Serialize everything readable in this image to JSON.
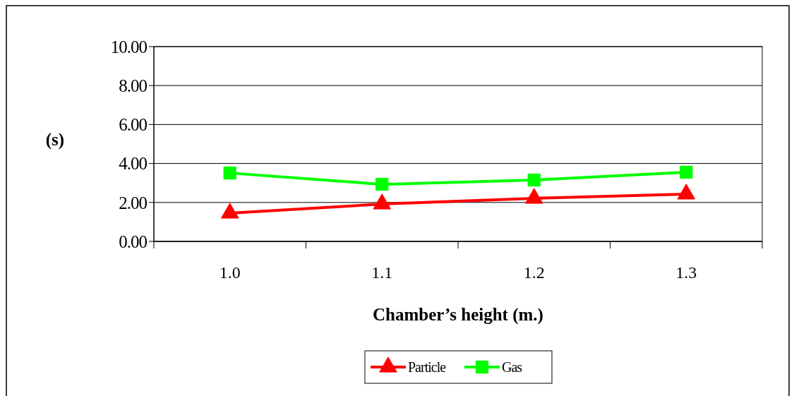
{
  "chart_data": {
    "type": "line",
    "xlabel": "Chamber’s height (m.)",
    "ylabel": "(s)",
    "categories": [
      "1.0",
      "1.1",
      "1.2",
      "1.3"
    ],
    "series": [
      {
        "name": "Particle",
        "color": "#ff0000",
        "marker": "triangle",
        "values": [
          1.45,
          1.92,
          2.21,
          2.43
        ]
      },
      {
        "name": "Gas",
        "color": "#00ff00",
        "marker": "square",
        "values": [
          3.51,
          2.93,
          3.15,
          3.55
        ]
      }
    ],
    "ylim": [
      0,
      10
    ],
    "yticks": [
      {
        "value": 0,
        "label": "0.00"
      },
      {
        "value": 2,
        "label": "2.00"
      },
      {
        "value": 4,
        "label": "4.00"
      },
      {
        "value": 6,
        "label": "6.00"
      },
      {
        "value": 8,
        "label": "8.00"
      },
      {
        "value": 10,
        "label": "10.00"
      }
    ],
    "grid": "y",
    "legend": "bottom"
  }
}
